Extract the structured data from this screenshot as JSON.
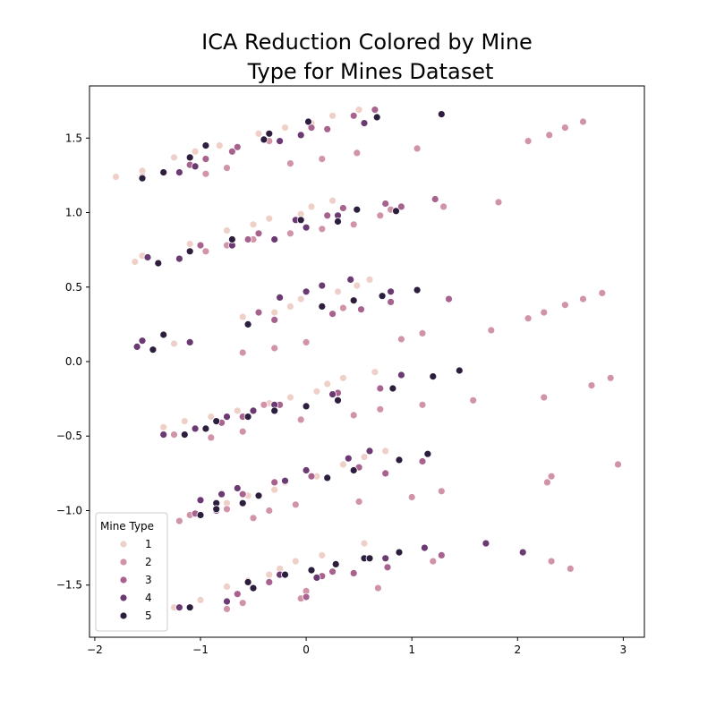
{
  "chart_data": {
    "type": "scatter",
    "title": "ICA Reduction Colored by Mine Type for Mines Dataset",
    "title_lines": [
      "ICA Reduction Colored by Mine",
      "Type for Mines Dataset"
    ],
    "xlabel": "",
    "ylabel": "",
    "xlim": [
      -2.05,
      3.2
    ],
    "ylim": [
      -1.85,
      1.85
    ],
    "x_ticks": [
      -2,
      -1,
      0,
      1,
      2,
      3
    ],
    "y_ticks": [
      -1.5,
      -1.0,
      -0.5,
      0.0,
      0.5,
      1.0,
      1.5
    ],
    "x_tick_labels": [
      "−2",
      "−1",
      "0",
      "1",
      "2",
      "3"
    ],
    "y_tick_labels": [
      "−1.5",
      "−1.0",
      "−0.5",
      "0.0",
      "0.5",
      "1.0",
      "1.5"
    ],
    "grid": false,
    "legend": {
      "title": "Mine Type",
      "placement": "lower-left",
      "entries": [
        "1",
        "2",
        "3",
        "4",
        "5"
      ]
    },
    "colors": {
      "1": "#efd0c8",
      "2": "#d193a8",
      "3": "#a8628e",
      "4": "#6b3a72",
      "5": "#2d1e3e"
    },
    "series": [
      {
        "name": "1",
        "points": [
          [
            -1.8,
            1.24
          ],
          [
            -1.55,
            1.28
          ],
          [
            -1.25,
            1.37
          ],
          [
            -1.05,
            1.41
          ],
          [
            -0.82,
            1.45
          ],
          [
            -0.45,
            1.53
          ],
          [
            -0.2,
            1.57
          ],
          [
            0.05,
            1.6
          ],
          [
            0.25,
            1.65
          ],
          [
            0.5,
            1.69
          ],
          [
            -1.62,
            0.67
          ],
          [
            -1.55,
            0.71
          ],
          [
            -1.1,
            0.79
          ],
          [
            -0.75,
            0.88
          ],
          [
            -0.5,
            0.92
          ],
          [
            -0.35,
            0.96
          ],
          [
            -0.05,
            0.99
          ],
          [
            0.05,
            1.04
          ],
          [
            0.25,
            1.08
          ],
          [
            0.6,
            0.55
          ],
          [
            -1.25,
            0.12
          ],
          [
            -0.6,
            0.3
          ],
          [
            -0.3,
            0.33
          ],
          [
            -0.15,
            0.37
          ],
          [
            -0.05,
            0.42
          ],
          [
            0.3,
            0.47
          ],
          [
            0.48,
            0.51
          ],
          [
            -1.35,
            -0.44
          ],
          [
            -1.15,
            -0.4
          ],
          [
            -0.9,
            -0.37
          ],
          [
            -0.65,
            -0.33
          ],
          [
            -0.35,
            -0.28
          ],
          [
            -0.15,
            -0.24
          ],
          [
            0.1,
            -0.2
          ],
          [
            0.2,
            -0.15
          ],
          [
            0.35,
            -0.11
          ],
          [
            0.65,
            -0.07
          ],
          [
            -0.75,
            -0.95
          ],
          [
            -0.55,
            -0.9
          ],
          [
            -0.3,
            -0.86
          ],
          [
            -0.2,
            -0.81
          ],
          [
            0.1,
            -0.77
          ],
          [
            0.35,
            -0.69
          ],
          [
            0.55,
            -0.64
          ],
          [
            0.75,
            -0.6
          ],
          [
            -1.25,
            -1.65
          ],
          [
            -1.0,
            -1.6
          ],
          [
            -0.75,
            -1.51
          ],
          [
            -0.55,
            -1.47
          ],
          [
            -0.35,
            -1.43
          ],
          [
            -0.25,
            -1.39
          ],
          [
            -0.1,
            -1.34
          ],
          [
            0.15,
            -1.3
          ],
          [
            0.55,
            -1.22
          ]
        ]
      },
      {
        "name": "2",
        "points": [
          [
            -1.55,
            1.24
          ],
          [
            -0.75,
            1.3
          ],
          [
            -0.95,
            1.26
          ],
          [
            -0.15,
            1.33
          ],
          [
            0.15,
            1.36
          ],
          [
            0.48,
            1.4
          ],
          [
            1.05,
            1.43
          ],
          [
            2.1,
            1.48
          ],
          [
            2.3,
            1.52
          ],
          [
            2.45,
            1.57
          ],
          [
            2.62,
            1.61
          ],
          [
            -0.35,
            1.48
          ],
          [
            -0.95,
            0.74
          ],
          [
            -0.75,
            0.78
          ],
          [
            -0.5,
            0.82
          ],
          [
            -0.15,
            0.86
          ],
          [
            0.15,
            0.89
          ],
          [
            0.45,
            0.92
          ],
          [
            0.7,
            0.98
          ],
          [
            0.8,
            1.02
          ],
          [
            1.3,
            1.04
          ],
          [
            1.82,
            1.07
          ],
          [
            -0.6,
            0.06
          ],
          [
            -0.3,
            0.09
          ],
          [
            0.0,
            0.13
          ],
          [
            0.9,
            0.15
          ],
          [
            1.1,
            0.19
          ],
          [
            1.75,
            0.21
          ],
          [
            2.1,
            0.29
          ],
          [
            2.25,
            0.33
          ],
          [
            2.45,
            0.38
          ],
          [
            2.62,
            0.42
          ],
          [
            2.8,
            0.46
          ],
          [
            0.35,
            0.36
          ],
          [
            -1.25,
            -0.49
          ],
          [
            -0.9,
            -0.51
          ],
          [
            -0.6,
            -0.47
          ],
          [
            -0.4,
            -0.29
          ],
          [
            -0.05,
            -0.39
          ],
          [
            0.45,
            -0.36
          ],
          [
            0.7,
            -0.32
          ],
          [
            1.1,
            -0.29
          ],
          [
            1.58,
            -0.26
          ],
          [
            2.25,
            -0.24
          ],
          [
            2.7,
            -0.16
          ],
          [
            2.88,
            -0.11
          ],
          [
            -1.2,
            -1.07
          ],
          [
            -1.1,
            -1.03
          ],
          [
            -0.75,
            -0.99
          ],
          [
            -0.5,
            -1.05
          ],
          [
            -0.35,
            -1.0
          ],
          [
            -0.1,
            -0.96
          ],
          [
            0.5,
            -0.94
          ],
          [
            1.0,
            -0.91
          ],
          [
            1.28,
            -0.87
          ],
          [
            2.28,
            -0.81
          ],
          [
            2.32,
            -0.77
          ],
          [
            2.95,
            -0.69
          ],
          [
            -0.75,
            -1.66
          ],
          [
            -0.6,
            -1.62
          ],
          [
            -0.05,
            -1.59
          ],
          [
            0.0,
            -1.54
          ],
          [
            0.68,
            -1.52
          ],
          [
            2.32,
            -1.34
          ],
          [
            2.5,
            -1.39
          ],
          [
            1.2,
            -1.34
          ]
        ]
      },
      {
        "name": "3",
        "points": [
          [
            -1.1,
            1.32
          ],
          [
            -0.95,
            1.36
          ],
          [
            -0.7,
            1.41
          ],
          [
            -0.65,
            1.44
          ],
          [
            0.05,
            1.57
          ],
          [
            0.2,
            1.56
          ],
          [
            0.45,
            1.65
          ],
          [
            0.65,
            1.69
          ],
          [
            -0.55,
            0.82
          ],
          [
            -0.45,
            0.86
          ],
          [
            -1.0,
            0.78
          ],
          [
            0.2,
            0.98
          ],
          [
            0.35,
            1.03
          ],
          [
            0.75,
            1.06
          ],
          [
            0.9,
            1.04
          ],
          [
            1.22,
            1.09
          ],
          [
            -0.3,
            0.28
          ],
          [
            -0.45,
            0.33
          ],
          [
            0.25,
            0.32
          ],
          [
            0.52,
            0.35
          ],
          [
            0.8,
            0.4
          ],
          [
            1.35,
            0.42
          ],
          [
            -0.8,
            -0.41
          ],
          [
            -0.6,
            -0.37
          ],
          [
            -0.25,
            -0.29
          ],
          [
            0.3,
            -0.21
          ],
          [
            0.7,
            -0.18
          ],
          [
            -0.6,
            -0.89
          ],
          [
            -0.3,
            -0.81
          ],
          [
            0.05,
            -0.77
          ],
          [
            0.5,
            -0.71
          ],
          [
            0.75,
            -0.75
          ],
          [
            1.1,
            -0.67
          ],
          [
            -1.05,
            -1.02
          ],
          [
            -0.35,
            -1.48
          ],
          [
            0.15,
            -1.44
          ],
          [
            0.25,
            -1.41
          ],
          [
            0.45,
            -1.42
          ],
          [
            0.77,
            -1.38
          ],
          [
            1.28,
            -1.3
          ],
          [
            0.0,
            -1.58
          ],
          [
            -0.65,
            -1.56
          ]
        ]
      },
      {
        "name": "4",
        "points": [
          [
            -1.2,
            1.27
          ],
          [
            -1.05,
            1.31
          ],
          [
            -0.25,
            1.48
          ],
          [
            -0.05,
            1.52
          ],
          [
            0.55,
            1.6
          ],
          [
            -0.3,
            0.82
          ],
          [
            -0.1,
            0.95
          ],
          [
            0.3,
            0.98
          ],
          [
            -0.7,
            0.78
          ],
          [
            0.0,
            0.9
          ],
          [
            -1.5,
            0.7
          ],
          [
            -1.2,
            0.69
          ],
          [
            -1.1,
            0.13
          ],
          [
            -1.6,
            0.1
          ],
          [
            -1.55,
            0.14
          ],
          [
            -0.25,
            0.43
          ],
          [
            0.0,
            0.47
          ],
          [
            0.15,
            0.51
          ],
          [
            0.42,
            0.55
          ],
          [
            0.8,
            0.47
          ],
          [
            -1.05,
            -0.45
          ],
          [
            -0.75,
            -0.37
          ],
          [
            -0.5,
            -0.33
          ],
          [
            -0.3,
            -0.29
          ],
          [
            0.25,
            -0.22
          ],
          [
            0.9,
            -0.09
          ],
          [
            -1.35,
            -0.49
          ],
          [
            -0.85,
            -1.0
          ],
          [
            -1.0,
            -0.93
          ],
          [
            -0.8,
            -0.89
          ],
          [
            -0.2,
            -0.8
          ],
          [
            -0.65,
            -0.85
          ],
          [
            0.0,
            -0.73
          ],
          [
            0.4,
            -0.65
          ],
          [
            0.6,
            -0.6
          ],
          [
            -0.75,
            -1.61
          ],
          [
            -0.25,
            -1.43
          ],
          [
            0.1,
            -1.45
          ],
          [
            0.75,
            -1.32
          ],
          [
            1.12,
            -1.25
          ],
          [
            1.7,
            -1.22
          ],
          [
            2.05,
            -1.28
          ],
          [
            -1.2,
            -1.65
          ]
        ]
      },
      {
        "name": "5",
        "points": [
          [
            -1.55,
            1.23
          ],
          [
            -1.35,
            1.27
          ],
          [
            -1.1,
            1.37
          ],
          [
            -0.95,
            1.45
          ],
          [
            -0.4,
            1.49
          ],
          [
            -0.35,
            1.53
          ],
          [
            0.02,
            1.61
          ],
          [
            0.67,
            1.64
          ],
          [
            1.28,
            1.66
          ],
          [
            -1.4,
            0.66
          ],
          [
            -1.1,
            0.74
          ],
          [
            -0.7,
            0.82
          ],
          [
            -0.05,
            0.95
          ],
          [
            0.3,
            0.94
          ],
          [
            0.48,
            1.02
          ],
          [
            0.85,
            1.01
          ],
          [
            -1.45,
            0.08
          ],
          [
            -1.35,
            0.18
          ],
          [
            -0.55,
            0.25
          ],
          [
            0.15,
            0.37
          ],
          [
            0.45,
            0.41
          ],
          [
            0.72,
            0.44
          ],
          [
            1.05,
            0.48
          ],
          [
            -1.15,
            -0.49
          ],
          [
            -0.95,
            -0.45
          ],
          [
            -0.55,
            -0.37
          ],
          [
            -0.85,
            -0.4
          ],
          [
            -0.3,
            -0.33
          ],
          [
            0.0,
            -0.3
          ],
          [
            0.3,
            -0.26
          ],
          [
            0.82,
            -0.18
          ],
          [
            1.2,
            -0.1
          ],
          [
            1.45,
            -0.06
          ],
          [
            -0.45,
            -0.9
          ],
          [
            -0.85,
            -0.95
          ],
          [
            -1.0,
            -1.03
          ],
          [
            -0.85,
            -0.99
          ],
          [
            -0.6,
            -0.95
          ],
          [
            0.2,
            -0.78
          ],
          [
            0.45,
            -0.73
          ],
          [
            0.88,
            -0.66
          ],
          [
            1.15,
            -0.62
          ],
          [
            -1.1,
            -1.65
          ],
          [
            -0.5,
            -1.52
          ],
          [
            -0.55,
            -1.48
          ],
          [
            -0.2,
            -1.43
          ],
          [
            0.05,
            -1.4
          ],
          [
            0.28,
            -1.36
          ],
          [
            0.55,
            -1.32
          ],
          [
            0.6,
            -1.32
          ],
          [
            0.88,
            -1.28
          ]
        ]
      }
    ]
  }
}
